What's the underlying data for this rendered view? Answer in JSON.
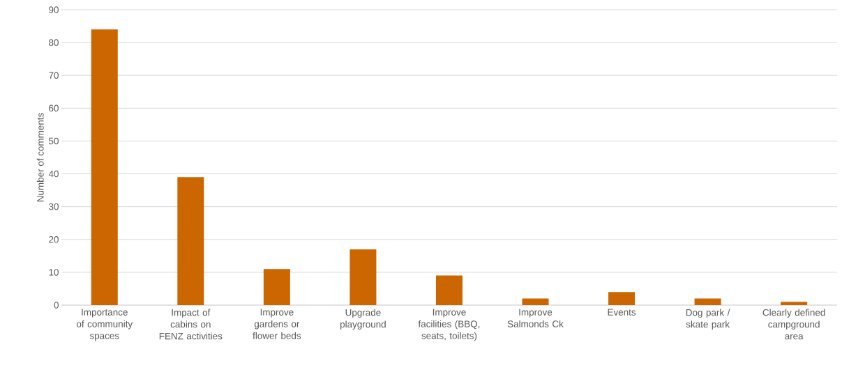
{
  "chart_data": {
    "type": "bar",
    "ylabel": "Number of comments",
    "categories": [
      "Importance of community spaces",
      "Impact of cabins on FENZ activities",
      "Improve gardens or flower beds",
      "Upgrade playground",
      "Improve facilities (BBQ, seats, toilets)",
      "Improve Salmonds Ck",
      "Events",
      "Dog park / skate park",
      "Clearly defined campground area"
    ],
    "values": [
      84,
      39,
      11,
      17,
      9,
      2,
      4,
      2,
      1
    ],
    "color": "#cc6600",
    "ylim": [
      0,
      90
    ],
    "yticks": [
      0,
      10,
      20,
      30,
      40,
      50,
      60,
      70,
      80,
      90
    ],
    "grid": "y"
  }
}
